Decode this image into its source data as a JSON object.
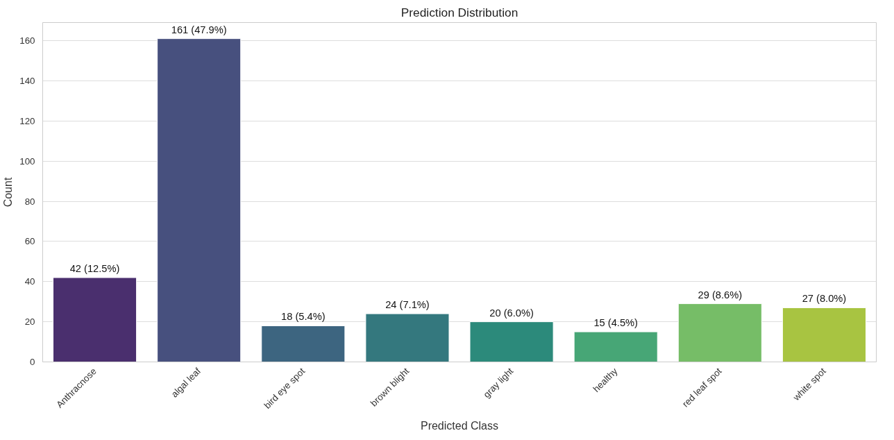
{
  "chart_data": {
    "type": "bar",
    "title": "Prediction Distribution",
    "xlabel": "Predicted Class",
    "ylabel": "Count",
    "categories": [
      "Anthracnose",
      "algal leaf",
      "bird eye spot",
      "brown blight",
      "gray light",
      "healthy",
      "red leaf spot",
      "white spot"
    ],
    "values": [
      42,
      161,
      18,
      24,
      20,
      15,
      29,
      27
    ],
    "colors": [
      "#4a2f6e",
      "#47507e",
      "#3d6580",
      "#34787e",
      "#2c8a7b",
      "#47a676",
      "#76bd67",
      "#a8c441"
    ],
    "value_labels": [
      "42 (12.5%)",
      "161 (47.9%)",
      "18 (5.4%)",
      "24 (7.1%)",
      "20 (6.0%)",
      "15 (4.5%)",
      "29 (8.6%)",
      "27 (8.0%)"
    ],
    "ylim": [
      0,
      169
    ],
    "yticks": [
      0,
      20,
      40,
      60,
      80,
      100,
      120,
      140,
      160
    ],
    "grid": "y"
  }
}
